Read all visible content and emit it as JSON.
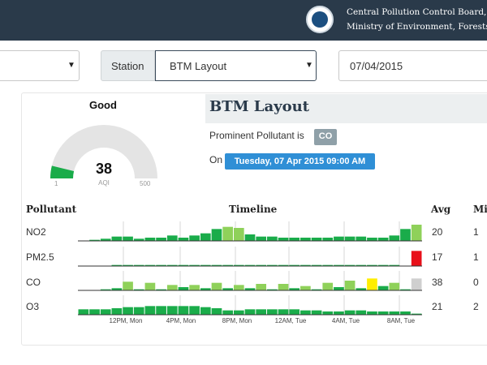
{
  "header": {
    "org_line1": "Central Pollution Control Board,",
    "org_line2": "Ministry of Environment, Forests and"
  },
  "filters": {
    "city": "",
    "station_label": "Station",
    "station": "BTM Layout",
    "date": "07/04/2015"
  },
  "aqi": {
    "status": "Good",
    "value": "38",
    "unit": "AQI",
    "min": "1",
    "max": "500",
    "value_num": 38,
    "max_num": 500
  },
  "station": {
    "title": "BTM Layout",
    "prominent_label": "Prominent Pollutant is",
    "prominent": "CO",
    "on_label": "On",
    "datetime": "Tuesday, 07 Apr 2015 09:00 AM"
  },
  "table": {
    "headers": {
      "pollutant": "Pollutant",
      "timeline": "Timeline",
      "avg": "Avg",
      "min": "Mi"
    },
    "rows": [
      {
        "name": "NO2",
        "avg": "20",
        "min": "1",
        "values": [
          0,
          1,
          2,
          4,
          4,
          2,
          3,
          3,
          5,
          3,
          5,
          7,
          11,
          13,
          12,
          6,
          4,
          4,
          3,
          3,
          3,
          3,
          3,
          4,
          4,
          4,
          3,
          3,
          5,
          11,
          15
        ],
        "colors": [
          "g",
          "g",
          "g",
          "g",
          "g",
          "g",
          "g",
          "g",
          "g",
          "g",
          "g",
          "g",
          "g",
          "lg",
          "lg",
          "g",
          "g",
          "g",
          "g",
          "g",
          "g",
          "g",
          "g",
          "g",
          "g",
          "g",
          "g",
          "g",
          "g",
          "g",
          "lg"
        ]
      },
      {
        "name": "PM2.5",
        "avg": "17",
        "min": "1",
        "values": [
          0,
          0,
          0,
          1,
          1,
          1,
          1,
          1,
          1,
          1,
          1,
          1,
          1,
          1,
          1,
          1,
          1,
          1,
          1,
          1,
          1,
          1,
          1,
          1,
          1,
          1,
          1,
          1,
          1,
          0,
          14
        ],
        "colors": [
          "g",
          "g",
          "g",
          "g",
          "g",
          "g",
          "g",
          "g",
          "g",
          "g",
          "g",
          "g",
          "g",
          "g",
          "g",
          "g",
          "g",
          "g",
          "g",
          "g",
          "g",
          "g",
          "g",
          "g",
          "g",
          "g",
          "g",
          "g",
          "g",
          "g",
          "r"
        ]
      },
      {
        "name": "CO",
        "avg": "38",
        "min": "0",
        "values": [
          0,
          0,
          1,
          2,
          8,
          1,
          7,
          1,
          5,
          3,
          5,
          2,
          7,
          2,
          5,
          2,
          6,
          1,
          6,
          2,
          4,
          1,
          7,
          3,
          9,
          2,
          11,
          4,
          7,
          1,
          11
        ],
        "colors": [
          "g",
          "g",
          "g",
          "g",
          "lg",
          "g",
          "lg",
          "g",
          "lg",
          "g",
          "lg",
          "g",
          "lg",
          "g",
          "lg",
          "g",
          "lg",
          "g",
          "lg",
          "g",
          "lg",
          "g",
          "lg",
          "g",
          "lg",
          "g",
          "y",
          "g",
          "lg",
          "g",
          "gr"
        ]
      },
      {
        "name": "O3",
        "avg": "21",
        "min": "2",
        "values": [
          5,
          5,
          5,
          6,
          7,
          7,
          8,
          8,
          8,
          8,
          8,
          7,
          6,
          4,
          4,
          5,
          5,
          5,
          5,
          5,
          4,
          4,
          3,
          3,
          4,
          4,
          3,
          3,
          3,
          3,
          1
        ],
        "colors": [
          "g",
          "g",
          "g",
          "g",
          "g",
          "g",
          "g",
          "g",
          "g",
          "g",
          "g",
          "g",
          "g",
          "g",
          "g",
          "g",
          "g",
          "g",
          "g",
          "g",
          "g",
          "g",
          "g",
          "g",
          "g",
          "g",
          "g",
          "g",
          "g",
          "g",
          "g"
        ]
      }
    ],
    "xticks": [
      "12PM, Mon",
      "4PM, Mon",
      "8PM, Mon",
      "12AM, Tue",
      "4AM, Tue",
      "8AM, Tue"
    ]
  },
  "colors": {
    "header_bg": "#2a3a4a",
    "good": "#1aac4a",
    "satisfactory": "#8fd15a",
    "moderate": "#ffee00",
    "severe": "#e8101a",
    "nodata": "#cfcfcf",
    "badge": "#2f8fd6"
  }
}
